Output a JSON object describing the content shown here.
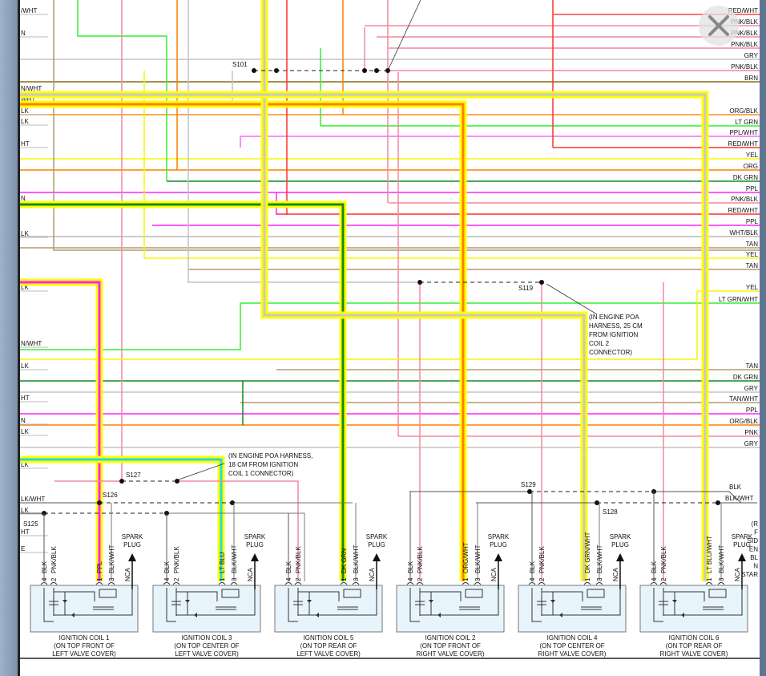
{
  "right_labels": [
    {
      "label": "RED/WHT",
      "color": "#ff4040"
    },
    {
      "label": "PNK/BLK",
      "color": "#f08aa0"
    },
    {
      "label": "PNK/BLK",
      "color": "#f08aa0"
    },
    {
      "label": "PNK/BLK",
      "color": "#f08aa0"
    },
    {
      "label": "GRY",
      "color": "#c4c4c4"
    },
    {
      "label": "PNK/BLK",
      "color": "#f08aa0"
    },
    {
      "label": "BRN",
      "color": "#8a6a14"
    },
    {
      "label": "ORG/BLK",
      "color": "#ff8c1a"
    },
    {
      "label": "LT GRN",
      "color": "#33ee33"
    },
    {
      "label": "PPL/WHT",
      "color": "#ff66ff"
    },
    {
      "label": "RED/WHT",
      "color": "#ff3030"
    },
    {
      "label": "YEL",
      "color": "#f5f500"
    },
    {
      "label": "ORG",
      "color": "#ff7f00"
    },
    {
      "label": "DK GRN",
      "color": "#128a20"
    },
    {
      "label": "PPL",
      "color": "#ff22ff"
    },
    {
      "label": "PNK/BLK",
      "color": "#f08aa0"
    },
    {
      "label": "RED/WHT",
      "color": "#ff3030"
    },
    {
      "label": "PPL",
      "color": "#ff22ff"
    },
    {
      "label": "WHT/BLK",
      "color": "#b8b8b8"
    },
    {
      "label": "TAN",
      "color": "#b09a70"
    },
    {
      "label": "YEL",
      "color": "#f5f500"
    },
    {
      "label": "TAN",
      "color": "#b09a70"
    },
    {
      "label": "YEL",
      "color": "#f5f500"
    },
    {
      "label": "LT GRN/WHT",
      "color": "#33ee33"
    },
    {
      "label": "TAN",
      "color": "#b09a70"
    },
    {
      "label": "DK GRN",
      "color": "#128a20"
    },
    {
      "label": "GRY",
      "color": "#c4c4c4"
    },
    {
      "label": "TAN/WHT",
      "color": "#b09a70"
    },
    {
      "label": "PPL",
      "color": "#ff22ff"
    },
    {
      "label": "ORG/BLK",
      "color": "#ff7f00"
    },
    {
      "label": "PNK",
      "color": "#f08aa0"
    },
    {
      "label": "GRY",
      "color": "#c4c4c4"
    }
  ],
  "left_labels": [
    "/WHT",
    "N",
    "N/WHT",
    "WHT",
    "LK",
    "LK",
    "HT",
    "N",
    "LK",
    "LK",
    "N/WHT",
    "LK",
    "HT",
    "N",
    "LK",
    "LK",
    "LK/WHT",
    "LK",
    "HT",
    "E"
  ],
  "splices": [
    "S101",
    "S119",
    "S125",
    "S126",
    "S127",
    "S128",
    "S129"
  ],
  "ground_labels": {
    "blk": "BLK",
    "blk_wht": "BLK/WHT"
  },
  "annotations": {
    "s127_note": [
      "(IN ENGINE POA HARNESS,",
      "18 CM FROM IGNITION",
      "COIL 1 CONNECTOR)"
    ],
    "s119_note": [
      "(IN ENGINE POA",
      "HARNESS, 25 CM",
      "FROM IGNITION",
      "COIL 2",
      "CONNECTOR)"
    ],
    "right_edge_note": [
      "(R",
      "F",
      "SID",
      "EN",
      "BL",
      "N",
      "STAR"
    ]
  },
  "spark_plug_label": [
    "SPARK",
    "PLUG"
  ],
  "coils": [
    {
      "title": "IGNITION COIL 1",
      "loc1": "(ON TOP FRONT OF",
      "loc2": "LEFT VALVE COVER)",
      "pins": [
        "4",
        "BLK",
        "2",
        "PNK/BLK",
        "1",
        "PPL",
        "3",
        "BLK/WHT",
        "NCA"
      ],
      "signal_color": "#ff22ff"
    },
    {
      "title": "IGNITION COIL 3",
      "loc1": "(ON TOP CENTER OF",
      "loc2": "LEFT VALVE COVER)",
      "pins": [
        "4",
        "BLK",
        "2",
        "PNK/BLK",
        "1",
        "LT BLU",
        "3",
        "BLK/WHT",
        "NCA"
      ],
      "signal_color": "#22dddd"
    },
    {
      "title": "IGNITION COIL 5",
      "loc1": "(ON TOP REAR OF",
      "loc2": "LEFT VALVE COVER)",
      "pins": [
        "4",
        "BLK",
        "2",
        "PNK/BLK",
        "1",
        "DK GRN",
        "3",
        "BLK/WHT",
        "NCA"
      ],
      "signal_color": "#128a20"
    },
    {
      "title": "IGNITION COIL 2",
      "loc1": "(ON TOP FRONT OF",
      "loc2": "RIGHT VALVE COVER)",
      "pins": [
        "4",
        "BLK",
        "2",
        "PNK/BLK",
        "1",
        "ORG/WHT",
        "3",
        "BLK/WHT",
        "NCA"
      ],
      "signal_color": "#ff7f00"
    },
    {
      "title": "IGNITION COIL 4",
      "loc1": "(ON TOP CENTER OF",
      "loc2": "RIGHT VALVE COVER)",
      "pins": [
        "4",
        "BLK",
        "2",
        "PNK/BLK",
        "1",
        "DK GRN/WHT",
        "3",
        "BLK/WHT",
        "NCA"
      ],
      "signal_color": "#c8c8c8"
    },
    {
      "title": "IGNITION COIL 6",
      "loc1": "(ON TOP REAR OF",
      "loc2": "RIGHT VALVE COVER)",
      "pins": [
        "4",
        "BLK",
        "2",
        "PNK/BLK",
        "1",
        "LT BLU/WHT",
        "3",
        "BLK/WHT",
        "NCA"
      ],
      "signal_color": "#c8c8c8"
    }
  ],
  "highlight_color": "#ffff00",
  "close_button": {
    "icon": "close-icon"
  }
}
